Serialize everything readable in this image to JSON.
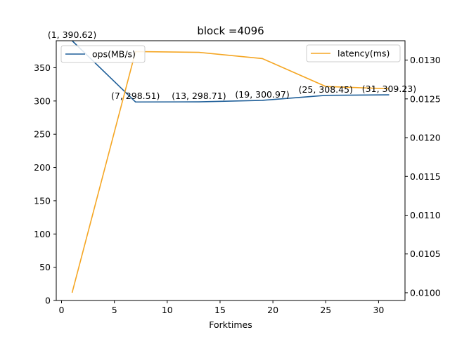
{
  "chart_data": {
    "type": "line",
    "title": "block =4096",
    "xlabel": "Forktimes",
    "ylabel": "",
    "y2label": "",
    "x": [
      1,
      7,
      13,
      19,
      25,
      31
    ],
    "xlim": [
      -0.5,
      32.5
    ],
    "ylim": [
      0,
      390.62
    ],
    "y2lim": [
      0.0099,
      0.01325
    ],
    "xticks": [
      0,
      5,
      10,
      15,
      20,
      25,
      30
    ],
    "yticks": [
      0,
      50,
      100,
      150,
      200,
      250,
      300,
      350
    ],
    "y2ticks": [
      0.01,
      0.0105,
      0.011,
      0.0115,
      0.012,
      0.0125,
      0.013
    ],
    "y2tick_labels": [
      "0.0100",
      "0.0105",
      "0.0110",
      "0.0115",
      "0.0120",
      "0.0125",
      "0.0130"
    ],
    "series": [
      {
        "name": "ops(MB/s)",
        "axis": "left",
        "color": "#1f5f99",
        "values": [
          390.62,
          298.51,
          298.71,
          300.97,
          308.45,
          309.23
        ],
        "point_labels": [
          "(1, 390.62)",
          "(7, 298.51)",
          "(13, 298.71)",
          "(19, 300.97)",
          "(25, 308.45)",
          "(31, 309.23)"
        ],
        "legend_position": "upper-left"
      },
      {
        "name": "latency(ms)",
        "axis": "right",
        "color": "#f5a623",
        "values": [
          0.01,
          0.01311,
          0.0131,
          0.01302,
          0.01266,
          0.01263
        ],
        "legend_position": "upper-right"
      }
    ],
    "grid": false
  }
}
